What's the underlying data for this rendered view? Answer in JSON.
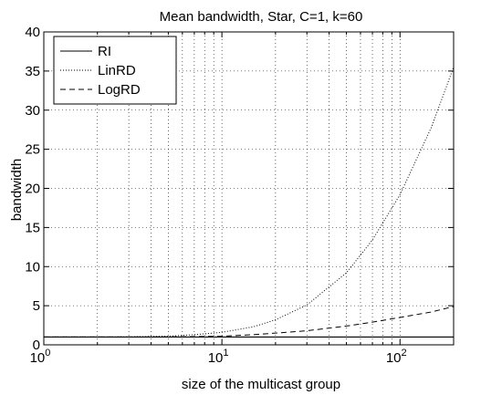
{
  "chart_data": {
    "type": "line",
    "title": "Mean bandwidth, Star, C=1, k=60",
    "xlabel": "size of the multicast group",
    "ylabel": "bandwidth",
    "xscale": "log",
    "xlim": [
      1,
      200
    ],
    "ylim": [
      0,
      40
    ],
    "grid": true,
    "legend_position": "top-left",
    "x_ticks": [
      {
        "value": 1,
        "base": "10",
        "exp": "0"
      },
      {
        "value": 10,
        "base": "10",
        "exp": "1"
      },
      {
        "value": 100,
        "base": "10",
        "exp": "2"
      }
    ],
    "y_ticks": [
      0,
      5,
      10,
      15,
      20,
      25,
      30,
      35,
      40
    ],
    "series": [
      {
        "name": "RI",
        "style": "solid",
        "x": [
          1,
          2,
          5,
          10,
          20,
          50,
          100,
          200
        ],
        "y": [
          1,
          1,
          1,
          1,
          1,
          1,
          1,
          1
        ]
      },
      {
        "name": "LinRD",
        "style": "dotted",
        "x": [
          1,
          2,
          3,
          5,
          7,
          10,
          15,
          20,
          30,
          50,
          70,
          100,
          150,
          200
        ],
        "y": [
          1,
          1,
          1.02,
          1.1,
          1.3,
          1.6,
          2.3,
          3.2,
          5.1,
          9.2,
          13.4,
          19.2,
          27.8,
          35.5
        ]
      },
      {
        "name": "LogRD",
        "style": "dashed",
        "x": [
          1,
          2,
          3,
          5,
          7,
          10,
          15,
          20,
          30,
          50,
          70,
          100,
          150,
          200
        ],
        "y": [
          1,
          1,
          1,
          1.02,
          1.05,
          1.1,
          1.3,
          1.5,
          1.8,
          2.4,
          2.9,
          3.5,
          4.2,
          4.9
        ]
      }
    ]
  }
}
